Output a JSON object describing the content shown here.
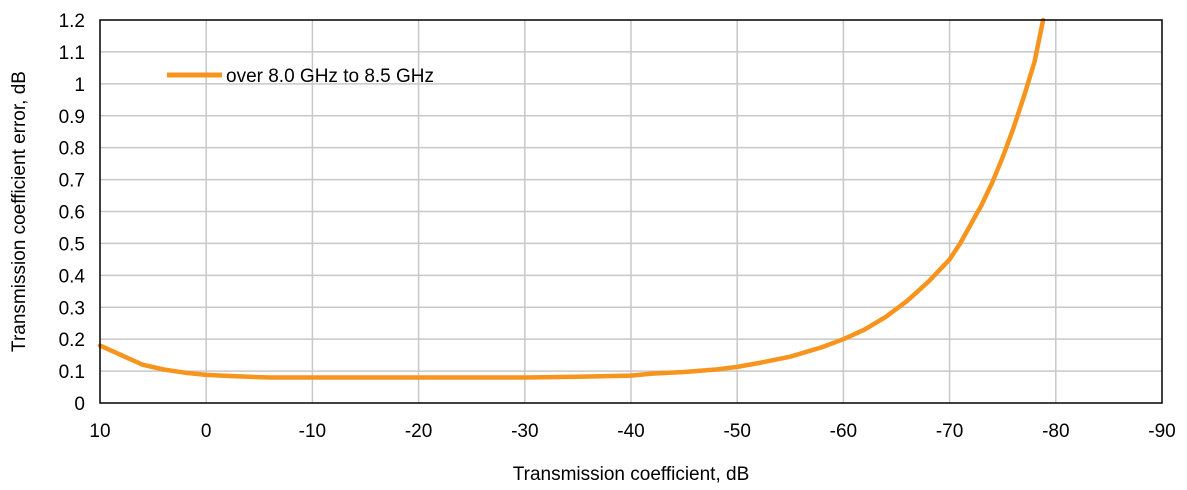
{
  "chart_data": {
    "type": "line",
    "title": "",
    "xlabel": "Transmission coefficient, dB",
    "ylabel": "Transmission coefficient error, dB",
    "xlim": [
      10,
      -90
    ],
    "ylim": [
      0,
      1.2
    ],
    "x_ticks": [
      "10",
      "0",
      "-10",
      "-20",
      "-30",
      "-40",
      "-50",
      "-60",
      "-70",
      "-80",
      "-90"
    ],
    "y_ticks": [
      "0",
      "0.1",
      "0.2",
      "0.3",
      "0.4",
      "0.5",
      "0.6",
      "0.7",
      "0.8",
      "0.9",
      "1",
      "1.1",
      "1.2"
    ],
    "grid": true,
    "legend_position": "top-left",
    "series": [
      {
        "name": "over 8.0 GHz to 8.5 GHz",
        "color": "#f7941d",
        "x": [
          10,
          8,
          6,
          4,
          2,
          0,
          -2,
          -4,
          -6,
          -10,
          -20,
          -30,
          -35,
          -40,
          -42,
          -45,
          -48,
          -50,
          -52,
          -55,
          -58,
          -60,
          -62,
          -64,
          -66,
          -68,
          -70,
          -71,
          -72,
          -73,
          -74,
          -75,
          -76,
          -77,
          -78,
          -78.8
        ],
        "y": [
          0.18,
          0.15,
          0.12,
          0.105,
          0.095,
          0.088,
          0.085,
          0.082,
          0.08,
          0.08,
          0.08,
          0.08,
          0.082,
          0.086,
          0.092,
          0.097,
          0.105,
          0.113,
          0.125,
          0.145,
          0.175,
          0.2,
          0.23,
          0.27,
          0.32,
          0.38,
          0.45,
          0.5,
          0.56,
          0.62,
          0.69,
          0.77,
          0.86,
          0.96,
          1.07,
          1.2
        ]
      }
    ]
  }
}
